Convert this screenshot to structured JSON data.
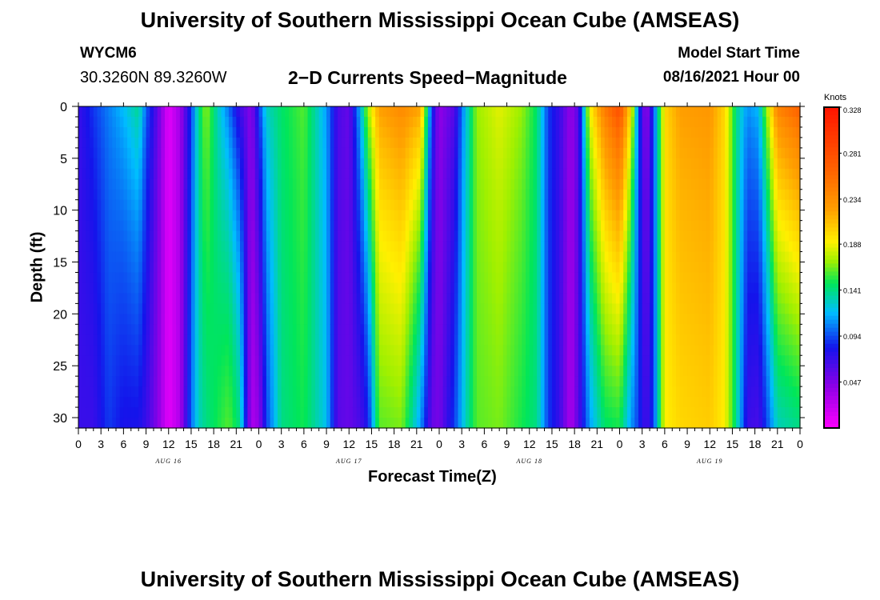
{
  "page": {
    "title_top": "University of Southern Mississippi Ocean Cube (AMSEAS)",
    "title_bottom": "University of Southern Mississippi Ocean Cube (AMSEAS)",
    "station_id": "WYCM6",
    "station_coords": "30.3260N  89.3260W",
    "plot_title": "2−D Currents Speed−Magnitude",
    "model_start_label": "Model Start Time",
    "model_start_value": "08/16/2021 Hour 00"
  },
  "chart_data": {
    "type": "heatmap",
    "title": "2-D Currents Speed-Magnitude",
    "xlabel": "Forecast Time(Z)",
    "ylabel": "Depth (ft)",
    "x_hours_range": [
      0,
      96
    ],
    "ylim": [
      0,
      31
    ],
    "y_ticks": [
      0,
      5,
      10,
      15,
      20,
      25,
      30
    ],
    "y_tick_labels": [
      "0",
      "5",
      "10",
      "15",
      "20",
      "25",
      "30"
    ],
    "x_tick_labels": [
      "0",
      "3",
      "6",
      "9",
      "12",
      "15",
      "18",
      "21",
      "0",
      "3",
      "6",
      "9",
      "12",
      "15",
      "18",
      "21",
      "0",
      "3",
      "6",
      "9",
      "12",
      "15",
      "18",
      "21",
      "0",
      "3",
      "6",
      "9",
      "12",
      "15",
      "18",
      "21",
      "0"
    ],
    "date_labels": [
      {
        "label": "AUG 16",
        "hour": 12
      },
      {
        "label": "AUG 17",
        "hour": 36
      },
      {
        "label": "AUG 18",
        "hour": 60
      },
      {
        "label": "AUG 19",
        "hour": 84
      }
    ],
    "colorbar": {
      "unit": "Knots",
      "vmin": 0.0,
      "vmax": 0.328,
      "tick_values": [
        0.328,
        0.281,
        0.234,
        0.188,
        0.141,
        0.094,
        0.047
      ],
      "tick_labels": [
        "0.328",
        "0.281",
        "0.234",
        "0.188",
        "0.141",
        "0.094",
        "0.047"
      ]
    },
    "speed_profile_surface": [
      {
        "hour": 0,
        "knots": 0.07
      },
      {
        "hour": 2,
        "knots": 0.09
      },
      {
        "hour": 4,
        "knots": 0.105
      },
      {
        "hour": 6,
        "knots": 0.12
      },
      {
        "hour": 8,
        "knots": 0.14
      },
      {
        "hour": 9,
        "knots": 0.1
      },
      {
        "hour": 10.5,
        "knots": 0.06
      },
      {
        "hour": 12,
        "knots": 0.01
      },
      {
        "hour": 13.5,
        "knots": 0.035
      },
      {
        "hour": 15,
        "knots": 0.09
      },
      {
        "hour": 16,
        "knots": 0.14
      },
      {
        "hour": 17,
        "knots": 0.17
      },
      {
        "hour": 18.5,
        "knots": 0.13
      },
      {
        "hour": 20,
        "knots": 0.1
      },
      {
        "hour": 21.5,
        "knots": 0.065
      },
      {
        "hour": 23,
        "knots": 0.045
      },
      {
        "hour": 24,
        "knots": 0.09
      },
      {
        "hour": 25,
        "knots": 0.13
      },
      {
        "hour": 27,
        "knots": 0.145
      },
      {
        "hour": 30,
        "knots": 0.16
      },
      {
        "hour": 33,
        "knots": 0.11
      },
      {
        "hour": 34.5,
        "knots": 0.065
      },
      {
        "hour": 36,
        "knots": 0.055
      },
      {
        "hour": 37.5,
        "knots": 0.12
      },
      {
        "hour": 38.5,
        "knots": 0.175
      },
      {
        "hour": 40,
        "knots": 0.225
      },
      {
        "hour": 43,
        "knots": 0.24
      },
      {
        "hour": 45.5,
        "knots": 0.225
      },
      {
        "hour": 47,
        "knots": 0.09
      },
      {
        "hour": 48,
        "knots": 0.04
      },
      {
        "hour": 50,
        "knots": 0.06
      },
      {
        "hour": 51.5,
        "knots": 0.12
      },
      {
        "hour": 53,
        "knots": 0.17
      },
      {
        "hour": 56,
        "knots": 0.185
      },
      {
        "hour": 59,
        "knots": 0.17
      },
      {
        "hour": 61,
        "knots": 0.145
      },
      {
        "hour": 62.5,
        "knots": 0.09
      },
      {
        "hour": 64,
        "knots": 0.07
      },
      {
        "hour": 65.5,
        "knots": 0.04
      },
      {
        "hour": 66.5,
        "knots": 0.06
      },
      {
        "hour": 68,
        "knots": 0.19
      },
      {
        "hour": 70,
        "knots": 0.25
      },
      {
        "hour": 72,
        "knots": 0.285
      },
      {
        "hour": 73.5,
        "knots": 0.2
      },
      {
        "hour": 74.5,
        "knots": 0.1
      },
      {
        "hour": 75.5,
        "knots": 0.035
      },
      {
        "hour": 76.5,
        "knots": 0.09
      },
      {
        "hour": 78,
        "knots": 0.2
      },
      {
        "hour": 80,
        "knots": 0.225
      },
      {
        "hour": 84,
        "knots": 0.23
      },
      {
        "hour": 86,
        "knots": 0.2
      },
      {
        "hour": 87.5,
        "knots": 0.14
      },
      {
        "hour": 89,
        "knots": 0.11
      },
      {
        "hour": 90.5,
        "knots": 0.12
      },
      {
        "hour": 91.5,
        "knots": 0.17
      },
      {
        "hour": 93,
        "knots": 0.245
      },
      {
        "hour": 96,
        "knots": 0.27
      }
    ],
    "speed_profile_bottom": [
      {
        "hour": 0,
        "knots": 0.07
      },
      {
        "hour": 2,
        "knots": 0.07
      },
      {
        "hour": 4,
        "knots": 0.09
      },
      {
        "hour": 6,
        "knots": 0.08
      },
      {
        "hour": 8,
        "knots": 0.08
      },
      {
        "hour": 9,
        "knots": 0.07
      },
      {
        "hour": 10.5,
        "knots": 0.045
      },
      {
        "hour": 12,
        "knots": 0.01
      },
      {
        "hour": 13.5,
        "knots": 0.03
      },
      {
        "hour": 15,
        "knots": 0.1
      },
      {
        "hour": 16,
        "knots": 0.13
      },
      {
        "hour": 17,
        "knots": 0.14
      },
      {
        "hour": 18.5,
        "knots": 0.15
      },
      {
        "hour": 20,
        "knots": 0.16
      },
      {
        "hour": 21.5,
        "knots": 0.14
      },
      {
        "hour": 23,
        "knots": 0.03
      },
      {
        "hour": 24,
        "knots": 0.04
      },
      {
        "hour": 25,
        "knots": 0.09
      },
      {
        "hour": 27,
        "knots": 0.14
      },
      {
        "hour": 30,
        "knots": 0.15
      },
      {
        "hour": 33,
        "knots": 0.12
      },
      {
        "hour": 34.5,
        "knots": 0.06
      },
      {
        "hour": 36,
        "knots": 0.055
      },
      {
        "hour": 37.5,
        "knots": 0.065
      },
      {
        "hour": 38.5,
        "knots": 0.08
      },
      {
        "hour": 40,
        "knots": 0.16
      },
      {
        "hour": 43,
        "knots": 0.165
      },
      {
        "hour": 45.5,
        "knots": 0.11
      },
      {
        "hour": 47,
        "knots": 0.055
      },
      {
        "hour": 48,
        "knots": 0.05
      },
      {
        "hour": 50,
        "knots": 0.09
      },
      {
        "hour": 51.5,
        "knots": 0.13
      },
      {
        "hour": 53,
        "knots": 0.16
      },
      {
        "hour": 56,
        "knots": 0.165
      },
      {
        "hour": 59,
        "knots": 0.15
      },
      {
        "hour": 61,
        "knots": 0.14
      },
      {
        "hour": 62.5,
        "knots": 0.09
      },
      {
        "hour": 64,
        "knots": 0.07
      },
      {
        "hour": 65.5,
        "knots": 0.03
      },
      {
        "hour": 66.5,
        "knots": 0.06
      },
      {
        "hour": 68,
        "knots": 0.11
      },
      {
        "hour": 70,
        "knots": 0.145
      },
      {
        "hour": 72,
        "knots": 0.15
      },
      {
        "hour": 73.5,
        "knots": 0.11
      },
      {
        "hour": 74.5,
        "knots": 0.09
      },
      {
        "hour": 75.5,
        "knots": 0.065
      },
      {
        "hour": 76.5,
        "knots": 0.09
      },
      {
        "hour": 78,
        "knots": 0.19
      },
      {
        "hour": 80,
        "knots": 0.2
      },
      {
        "hour": 84,
        "knots": 0.205
      },
      {
        "hour": 86,
        "knots": 0.19
      },
      {
        "hour": 87.5,
        "knots": 0.14
      },
      {
        "hour": 89,
        "knots": 0.07
      },
      {
        "hour": 90.5,
        "knots": 0.065
      },
      {
        "hour": 91.5,
        "knots": 0.09
      },
      {
        "hour": 93,
        "knots": 0.13
      },
      {
        "hour": 96,
        "knots": 0.14
      }
    ]
  }
}
